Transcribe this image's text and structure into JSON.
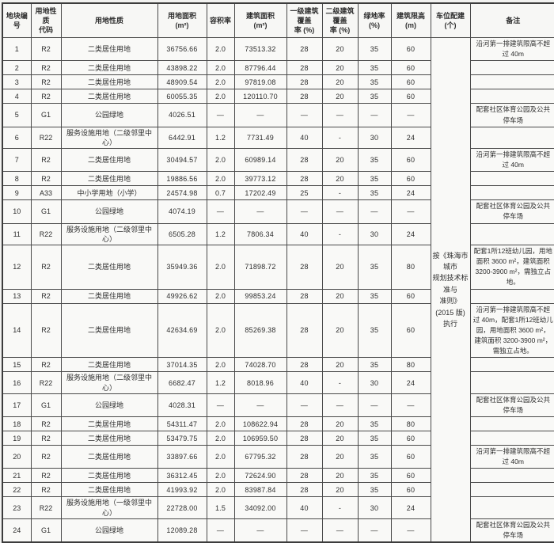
{
  "table": {
    "columns": [
      {
        "key": "plot_no",
        "label": "地块编号"
      },
      {
        "key": "code",
        "label": "用地性质\n代码"
      },
      {
        "key": "nature",
        "label": "用地性质"
      },
      {
        "key": "land_area",
        "label": "用地面积\n(m²)"
      },
      {
        "key": "far",
        "label": "容积率"
      },
      {
        "key": "building_area",
        "label": "建筑面积\n(m²)"
      },
      {
        "key": "coverage1",
        "label": "一级建筑覆盖\n率 (%)"
      },
      {
        "key": "coverage2",
        "label": "二级建筑覆盖\n率 (%)"
      },
      {
        "key": "green_rate",
        "label": "绿地率\n(%)"
      },
      {
        "key": "height_limit",
        "label": "建筑限高\n(m)"
      },
      {
        "key": "parking",
        "label": "车位配建\n(个)"
      },
      {
        "key": "remark",
        "label": "备注"
      }
    ],
    "parking_note": "按《珠海市城市\n规划技术标准与\n准则》(2015 版)\n执行",
    "rows": [
      [
        "1",
        "R2",
        "二类居住用地",
        "36756.66",
        "2.0",
        "73513.32",
        "28",
        "20",
        "35",
        "60",
        "沿河第一排建筑限高不超过 40m"
      ],
      [
        "2",
        "R2",
        "二类居住用地",
        "43898.22",
        "2.0",
        "87796.44",
        "28",
        "20",
        "35",
        "60",
        ""
      ],
      [
        "3",
        "R2",
        "二类居住用地",
        "48909.54",
        "2.0",
        "97819.08",
        "28",
        "20",
        "35",
        "60",
        ""
      ],
      [
        "4",
        "R2",
        "二类居住用地",
        "60055.35",
        "2.0",
        "120110.70",
        "28",
        "20",
        "35",
        "60",
        ""
      ],
      [
        "5",
        "G1",
        "公园绿地",
        "4026.51",
        "—",
        "—",
        "—",
        "—",
        "—",
        "—",
        "配套社区体育公园及公共停车场"
      ],
      [
        "6",
        "R22",
        "服务设施用地（二级邻里中心）",
        "6442.91",
        "1.2",
        "7731.49",
        "40",
        "-",
        "30",
        "24",
        ""
      ],
      [
        "7",
        "R2",
        "二类居住用地",
        "30494.57",
        "2.0",
        "60989.14",
        "28",
        "20",
        "35",
        "60",
        "沿河第一排建筑限高不超过 40m"
      ],
      [
        "8",
        "R2",
        "二类居住用地",
        "19886.56",
        "2.0",
        "39773.12",
        "28",
        "20",
        "35",
        "60",
        ""
      ],
      [
        "9",
        "A33",
        "中小学用地（小学）",
        "24574.98",
        "0.7",
        "17202.49",
        "25",
        "-",
        "35",
        "24",
        ""
      ],
      [
        "10",
        "G1",
        "公园绿地",
        "4074.19",
        "—",
        "—",
        "—",
        "—",
        "—",
        "—",
        "配套社区体育公园及公共停车场"
      ],
      [
        "11",
        "R22",
        "服务设施用地（二级邻里中心）",
        "6505.28",
        "1.2",
        "7806.34",
        "40",
        "-",
        "30",
        "24",
        ""
      ],
      [
        "12",
        "R2",
        "二类居住用地",
        "35949.36",
        "2.0",
        "71898.72",
        "28",
        "20",
        "35",
        "80",
        "配套1所12班幼儿园，用地面积 3600 m²，建筑面积 3200-3900 m²，需独立占地。"
      ],
      [
        "13",
        "R2",
        "二类居住用地",
        "49926.62",
        "2.0",
        "99853.24",
        "28",
        "20",
        "35",
        "60",
        ""
      ],
      [
        "14",
        "R2",
        "二类居住用地",
        "42634.69",
        "2.0",
        "85269.38",
        "28",
        "20",
        "35",
        "60",
        "沿河第一排建筑限高不超过 40m，配套1所12班幼儿园，用地面积 3600 m²，建筑面积 3200-3900 m²，需独立占地。"
      ],
      [
        "15",
        "R2",
        "二类居住用地",
        "37014.35",
        "2.0",
        "74028.70",
        "28",
        "20",
        "35",
        "80",
        ""
      ],
      [
        "16",
        "R22",
        "服务设施用地（二级邻里中心）",
        "6682.47",
        "1.2",
        "8018.96",
        "40",
        "-",
        "30",
        "24",
        ""
      ],
      [
        "17",
        "G1",
        "公园绿地",
        "4028.31",
        "—",
        "—",
        "—",
        "—",
        "—",
        "—",
        "配套社区体育公园及公共停车场"
      ],
      [
        "18",
        "R2",
        "二类居住用地",
        "54311.47",
        "2.0",
        "108622.94",
        "28",
        "20",
        "35",
        "80",
        ""
      ],
      [
        "19",
        "R2",
        "二类居住用地",
        "53479.75",
        "2.0",
        "106959.50",
        "28",
        "20",
        "35",
        "60",
        ""
      ],
      [
        "20",
        "R2",
        "二类居住用地",
        "33897.66",
        "2.0",
        "67795.32",
        "28",
        "20",
        "35",
        "60",
        "沿河第一排建筑限高不超过 40m"
      ],
      [
        "21",
        "R2",
        "二类居住用地",
        "36312.45",
        "2.0",
        "72624.90",
        "28",
        "20",
        "35",
        "60",
        ""
      ],
      [
        "22",
        "R2",
        "二类居住用地",
        "41993.92",
        "2.0",
        "83987.84",
        "28",
        "20",
        "35",
        "60",
        ""
      ],
      [
        "23",
        "R22",
        "服务设施用地（一级邻里中心）",
        "22728.00",
        "1.5",
        "34092.00",
        "40",
        "-",
        "30",
        "24",
        ""
      ],
      [
        "24",
        "G1",
        "公园绿地",
        "12089.28",
        "—",
        "—",
        "—",
        "—",
        "—",
        "—",
        "配套社区体育公园及公共停车场"
      ]
    ]
  }
}
